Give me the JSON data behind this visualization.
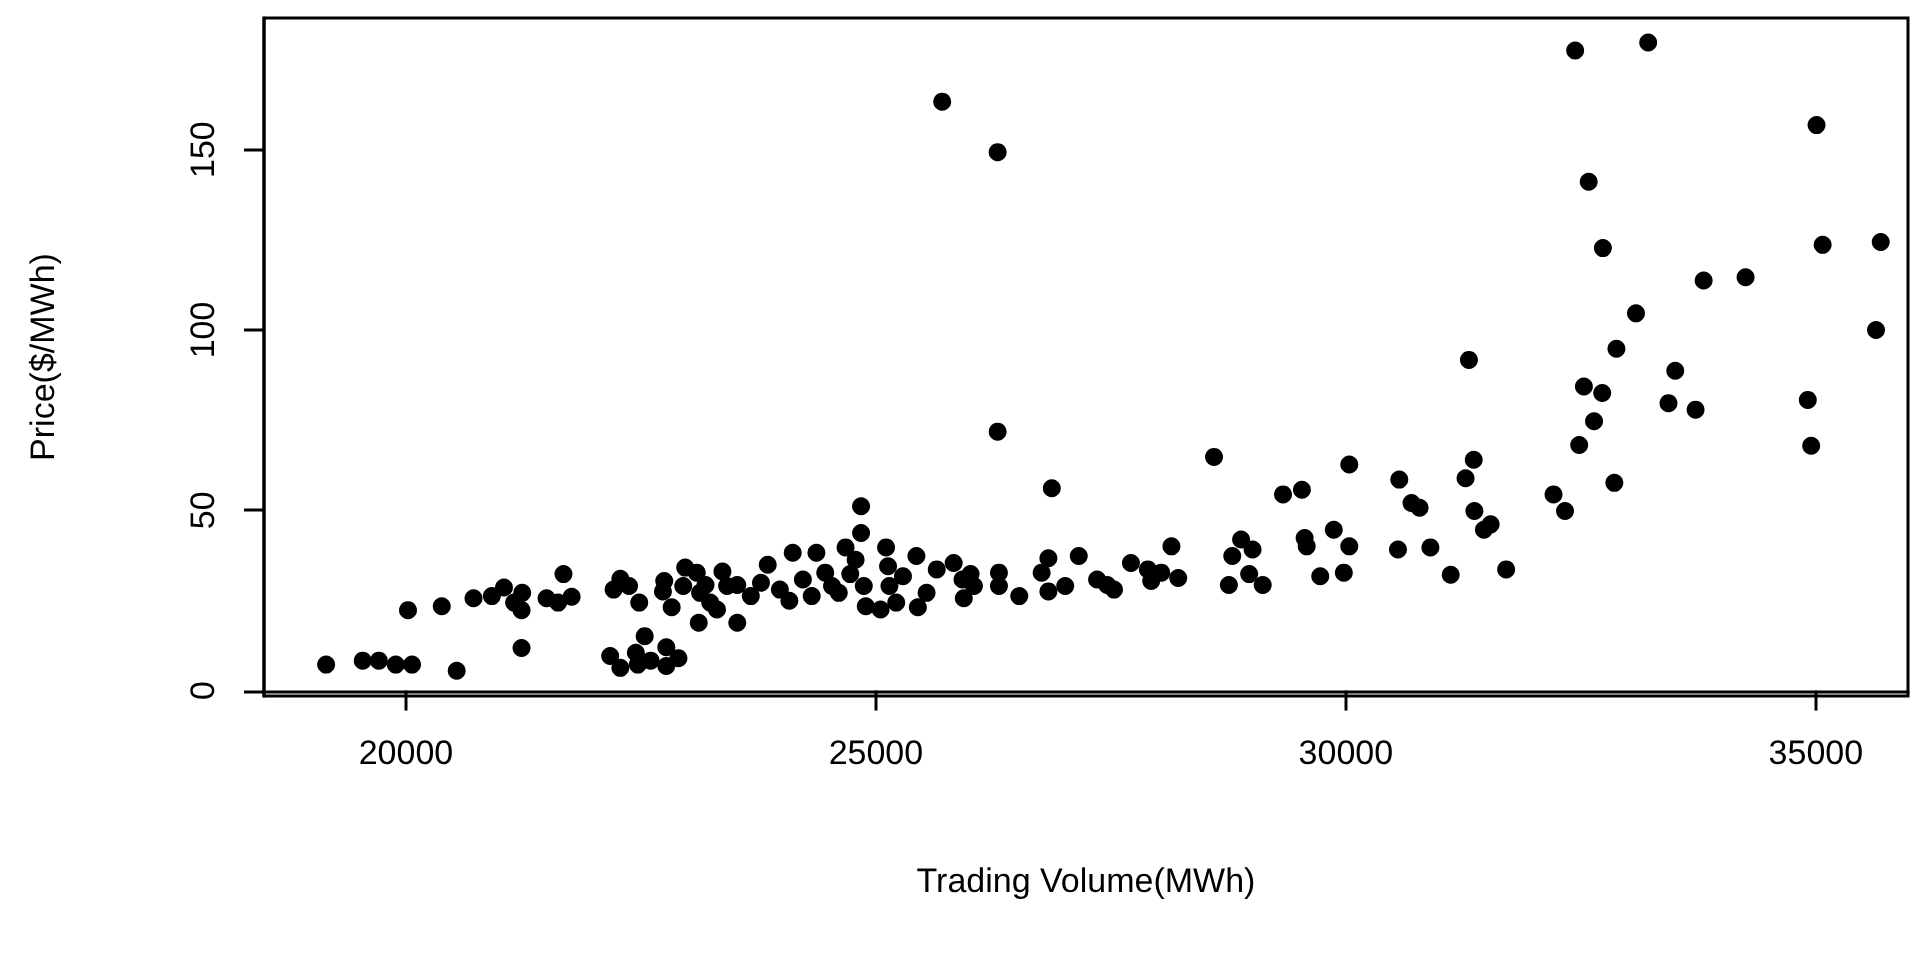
{
  "chart_data": {
    "type": "scatter",
    "xlabel": "Trading Volume(MWh)",
    "ylabel": "Price($/MWh)",
    "xlim": [
      18490,
      35980
    ],
    "xticks": [
      20000,
      25000,
      30000,
      35000
    ],
    "ylim": [
      -1.5,
      186.5
    ],
    "yticks": [
      0,
      50,
      100,
      150
    ],
    "marker": "circle",
    "series": [
      {
        "color": "#000000",
        "x": [
          19151,
          19540,
          19712,
          19892,
          20065,
          20022,
          20381,
          20540,
          20719,
          20914,
          21043,
          21151,
          21237,
          21230,
          21230,
          21496,
          21619,
          21676,
          21763,
          22173,
          22281,
          22209,
          22281,
          22374,
          22482,
          22446,
          22540,
          22467,
          22604,
          22770,
          22770,
          22899,
          22734,
          22748,
          22827,
          22971,
          22950,
          23094,
          23129,
          23115,
          23187,
          23237,
          23309,
          23367,
          23417,
          23525,
          23525,
          23669,
          23777,
          23849,
          23978,
          24079,
          24115,
          24223,
          24317,
          24367,
          24461,
          24533,
          24605,
          24677,
          24727,
          24784,
          24842,
          24842,
          24871,
          24892,
          25050,
          25108,
          25129,
          25144,
          25216,
          25288,
          25431,
          25446,
          25539,
          25647,
          25705,
          25827,
          25921,
          25935,
          26043,
          26007,
          26295,
          26295,
          26309,
          26309,
          26525,
          26763,
          26835,
          26835,
          26871,
          27014,
          27158,
          27353,
          27461,
          27533,
          27713,
          27893,
          27929,
          28036,
          28144,
          28216,
          28597,
          28755,
          28791,
          28885,
          29007,
          28971,
          29115,
          29331,
          29532,
          29561,
          29583,
          29727,
          29871,
          29978,
          30036,
          30036,
          30554,
          30568,
          30698,
          30784,
          30899,
          31115,
          31273,
          31309,
          31360,
          31367,
          31468,
          31540,
          31705,
          32209,
          32331,
          32439,
          32482,
          32532,
          32583,
          32640,
          32727,
          32734,
          32856,
          32878,
          33086,
          33216,
          33432,
          33504,
          33720,
          33806,
          34252,
          34914,
          34950,
          35007,
          35072,
          35640,
          35690
        ],
        "values": [
          7.2,
          8.3,
          8.3,
          7.2,
          7.2,
          22.3,
          23.4,
          5.5,
          25.6,
          26.2,
          28.6,
          24.4,
          27.1,
          22.3,
          11.8,
          25.6,
          24.4,
          32.3,
          26.0,
          9.6,
          6.3,
          28.0,
          31.0,
          29.0,
          24.4,
          10.5,
          15.1,
          7.2,
          8.3,
          12.0,
          6.8,
          9.0,
          27.5,
          30.4,
          23.1,
          34.1,
          29.0,
          32.7,
          27.1,
          18.8,
          29.3,
          24.4,
          22.5,
          33.0,
          29.0,
          18.8,
          29.3,
          26.2,
          29.9,
          34.9,
          28.0,
          24.9,
          38.2,
          30.8,
          26.2,
          38.2,
          32.7,
          29.0,
          27.1,
          39.7,
          32.3,
          36.3,
          51.1,
          43.7,
          29.0,
          23.4,
          22.5,
          39.7,
          34.5,
          29.0,
          24.4,
          31.7,
          37.3,
          23.1,
          27.1,
          33.6,
          163.3,
          35.4,
          30.8,
          25.6,
          29.0,
          32.3,
          149.3,
          71.8,
          32.7,
          29.0,
          26.2,
          32.7,
          36.7,
          27.5,
          56.1,
          29.0,
          37.3,
          30.8,
          29.3,
          28.0,
          35.4,
          33.6,
          30.4,
          32.7,
          40.0,
          31.2,
          64.8,
          29.3,
          37.3,
          41.9,
          39.1,
          32.3,
          29.3,
          54.4,
          55.7,
          42.3,
          40.0,
          31.7,
          44.6,
          32.7,
          40.0,
          62.7,
          39.1,
          58.5,
          52.0,
          50.7,
          39.7,
          32.1,
          58.9,
          91.7,
          64.0,
          49.8,
          44.6,
          46.1,
          33.6,
          54.4,
          49.8,
          177.5,
          68.1,
          84.3,
          141.1,
          74.7,
          82.5,
          122.7,
          57.6,
          94.8,
          104.6,
          179.7,
          79.7,
          88.7,
          77.9,
          113.7,
          114.6,
          80.6,
          67.9,
          156.8,
          123.6,
          100.0,
          124.4
        ]
      }
    ]
  }
}
